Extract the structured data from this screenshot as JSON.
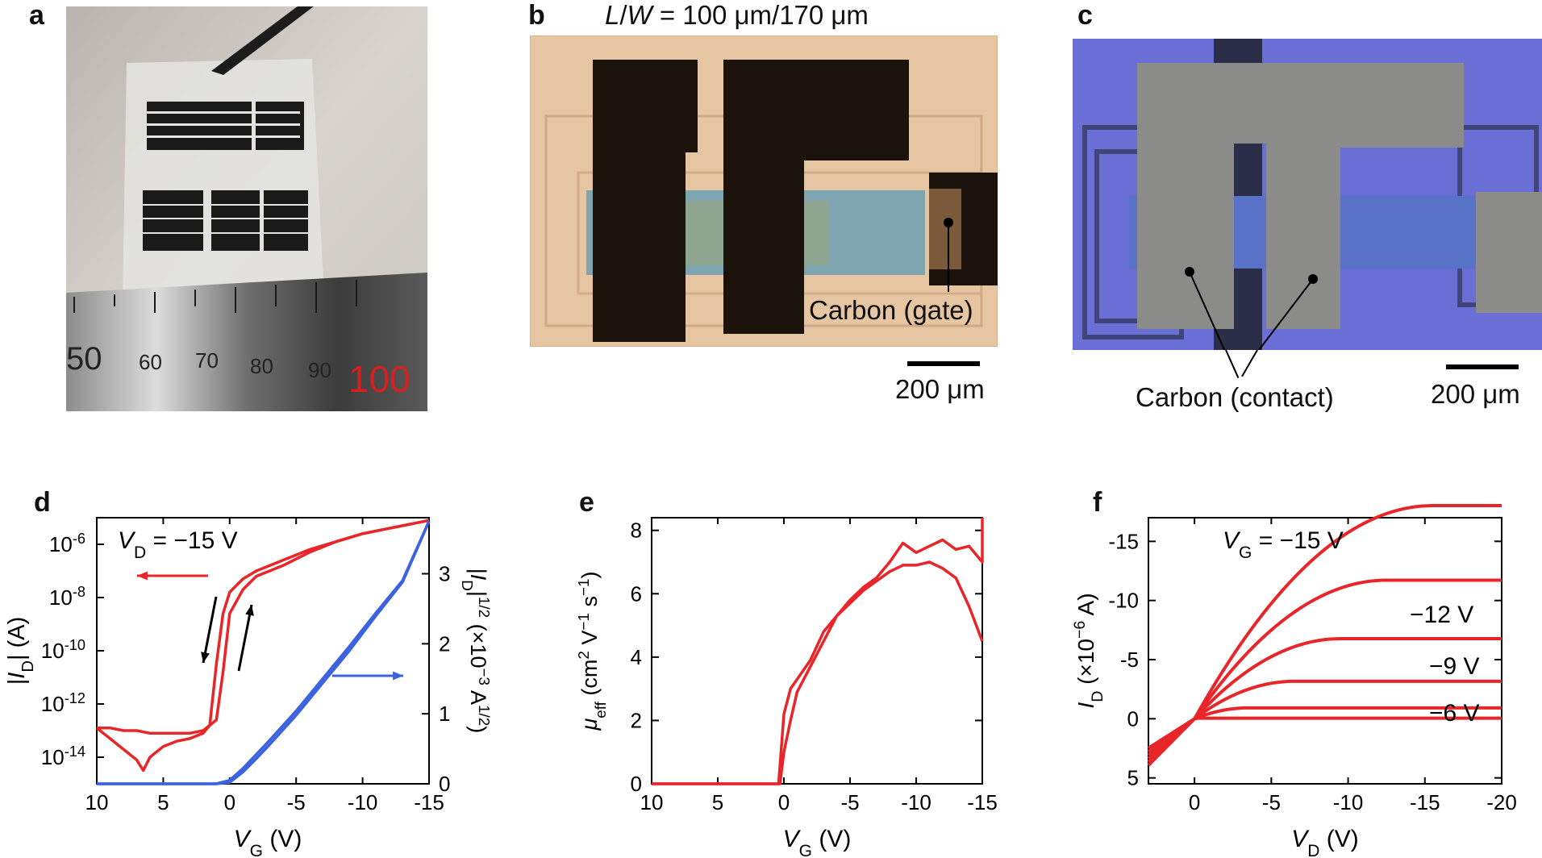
{
  "panels": {
    "a": {
      "label": "a",
      "ruler_ticks": [
        "50",
        "60",
        "70",
        "80",
        "90",
        "100"
      ]
    },
    "b": {
      "label": "b",
      "title_L": "L",
      "title_slash": "/",
      "title_W": "W",
      "title_rest": " = 100 μm/170 μm",
      "annotation": "Carbon (gate)",
      "scale_bar": "200 μm"
    },
    "c": {
      "label": "c",
      "annotation": "Carbon (contact)",
      "scale_bar": "200 μm"
    },
    "d": {
      "label": "d"
    },
    "e": {
      "label": "e"
    },
    "f": {
      "label": "f"
    }
  },
  "colors": {
    "red": "#e8262a",
    "blue": "#3b63e0",
    "black": "#000000"
  },
  "chart_data": [
    {
      "panel": "d",
      "type": "line",
      "xlabel_main": "V",
      "xlabel_sub": "G",
      "xlabel_unit": " (V)",
      "xlim": [
        10,
        -15
      ],
      "xticks": [
        "10",
        "5",
        "0",
        "-5",
        "-10",
        "-15"
      ],
      "ylabel_left": "|I_D| (A)",
      "yscale_left": "log",
      "ylim_left_exp": [
        -15,
        -5
      ],
      "yticks_left": [
        "10",
        "10",
        "10",
        "10",
        "10"
      ],
      "yticks_left_exp": [
        "-14",
        "-12",
        "-10",
        "-8",
        "-6"
      ],
      "ylabel_right": "|I_D|^1/2 (×10^-3 A^1/2)",
      "ylim_right": [
        0,
        3.8
      ],
      "yticks_right": [
        "0",
        "1",
        "2",
        "3"
      ],
      "annotation_main": "V",
      "annotation_sub": "D",
      "annotation_rest": " = −15 V",
      "series": [
        {
          "color": "red",
          "axis": "left",
          "x": [
            10,
            9,
            8,
            7,
            6.5,
            6,
            5,
            4,
            3,
            2,
            1.5,
            1,
            0.5,
            0,
            -1,
            -2,
            -4,
            -6,
            -8,
            -10,
            -12,
            -15
          ],
          "y_exp": [
            -12.9,
            -13.3,
            -13.7,
            -14.1,
            -14.5,
            -14.0,
            -13.6,
            -13.4,
            -13.3,
            -13.1,
            -12.8,
            -10.5,
            -8.6,
            -7.8,
            -7.3,
            -7.0,
            -6.6,
            -6.2,
            -5.9,
            -5.6,
            -5.4,
            -5.1
          ]
        },
        {
          "color": "red",
          "axis": "left",
          "x": [
            -15,
            -12,
            -10,
            -8,
            -6,
            -4,
            -2,
            -1,
            0,
            0.5,
            1,
            1.5,
            2,
            3,
            4,
            5,
            6,
            7,
            8,
            9,
            10
          ],
          "y_exp": [
            -5.1,
            -5.4,
            -5.6,
            -5.9,
            -6.3,
            -6.8,
            -7.2,
            -7.7,
            -8.6,
            -10.8,
            -12.6,
            -12.8,
            -13.0,
            -13.1,
            -13.1,
            -13.1,
            -13.1,
            -13.0,
            -13.0,
            -12.9,
            -12.9
          ]
        },
        {
          "color": "blue",
          "axis": "right",
          "x": [
            10,
            5,
            2,
            1,
            0,
            -1,
            -2,
            -3,
            -5,
            -7,
            -9,
            -11,
            -13,
            -15
          ],
          "y": [
            0,
            0,
            0,
            0,
            0.05,
            0.22,
            0.42,
            0.62,
            1.04,
            1.5,
            1.96,
            2.44,
            2.9,
            3.75
          ]
        },
        {
          "color": "blue",
          "axis": "right",
          "x": [
            10,
            5,
            2,
            1,
            0,
            -1,
            -2,
            -3,
            -5,
            -7,
            -9,
            -11,
            -13,
            -15
          ],
          "y": [
            0,
            0,
            0,
            0,
            0.02,
            0.17,
            0.36,
            0.56,
            0.98,
            1.44,
            1.9,
            2.4,
            2.88,
            3.75
          ]
        }
      ]
    },
    {
      "panel": "e",
      "type": "line",
      "xlabel_main": "V",
      "xlabel_sub": "G",
      "xlabel_unit": " (V)",
      "xlim": [
        10,
        -15
      ],
      "xticks": [
        "10",
        "5",
        "0",
        "-5",
        "-10",
        "-15"
      ],
      "ylabel": "μ_eff (cm² V⁻¹ s⁻¹)",
      "ylim": [
        0,
        8.4
      ],
      "yticks": [
        "0",
        "2",
        "4",
        "6",
        "8"
      ],
      "series": [
        {
          "color": "red",
          "x": [
            10,
            5,
            2,
            1,
            0.4,
            0,
            -0.5,
            -1,
            -2,
            -3,
            -4,
            -5,
            -6,
            -7,
            -8,
            -9,
            -10,
            -11,
            -12,
            -13,
            -14,
            -15,
            -15
          ],
          "y": [
            0,
            0,
            0,
            0,
            0,
            2.2,
            3.0,
            3.3,
            3.9,
            4.8,
            5.3,
            5.8,
            6.2,
            6.5,
            7.0,
            7.6,
            7.3,
            7.5,
            7.7,
            7.4,
            7.5,
            7.0,
            8.4
          ]
        },
        {
          "color": "red",
          "x": [
            -15,
            -14,
            -13,
            -12,
            -11,
            -10,
            -9,
            -8,
            -7,
            -6,
            -5,
            -4,
            -3,
            -2,
            -1,
            -0.5,
            0,
            0.3,
            1,
            5,
            10
          ],
          "y": [
            4.5,
            5.6,
            6.5,
            6.8,
            7.0,
            6.9,
            6.9,
            6.7,
            6.4,
            6.1,
            5.7,
            5.3,
            4.5,
            3.7,
            2.9,
            2.0,
            1.0,
            0,
            0,
            0,
            0
          ]
        }
      ]
    },
    {
      "panel": "f",
      "type": "line",
      "xlabel_main": "V",
      "xlabel_sub": "D",
      "xlabel_unit": " (V)",
      "xlim": [
        3,
        -20
      ],
      "xticks": [
        "0",
        "-5",
        "-10",
        "-15",
        "-20"
      ],
      "ylabel": "I_D (×10^-6 A)",
      "ylim": [
        5.5,
        -17
      ],
      "yticks": [
        "5",
        "0",
        "-5",
        "-10",
        "-15"
      ],
      "annotations": [
        {
          "main": "V",
          "sub": "G",
          "rest": " = −15 V"
        },
        {
          "text": "−12 V"
        },
        {
          "text": "−9 V"
        },
        {
          "text": "−6 V"
        }
      ],
      "series": [
        {
          "name": "−15 V",
          "color": "red",
          "VG": -15
        },
        {
          "name": "−12 V",
          "color": "red",
          "VG": -12
        },
        {
          "name": "−9 V",
          "color": "red",
          "VG": -9
        },
        {
          "name": "−6 V",
          "color": "red",
          "VG": -6
        },
        {
          "color": "red",
          "VG": -3
        },
        {
          "color": "red",
          "VG": 0
        }
      ]
    }
  ]
}
